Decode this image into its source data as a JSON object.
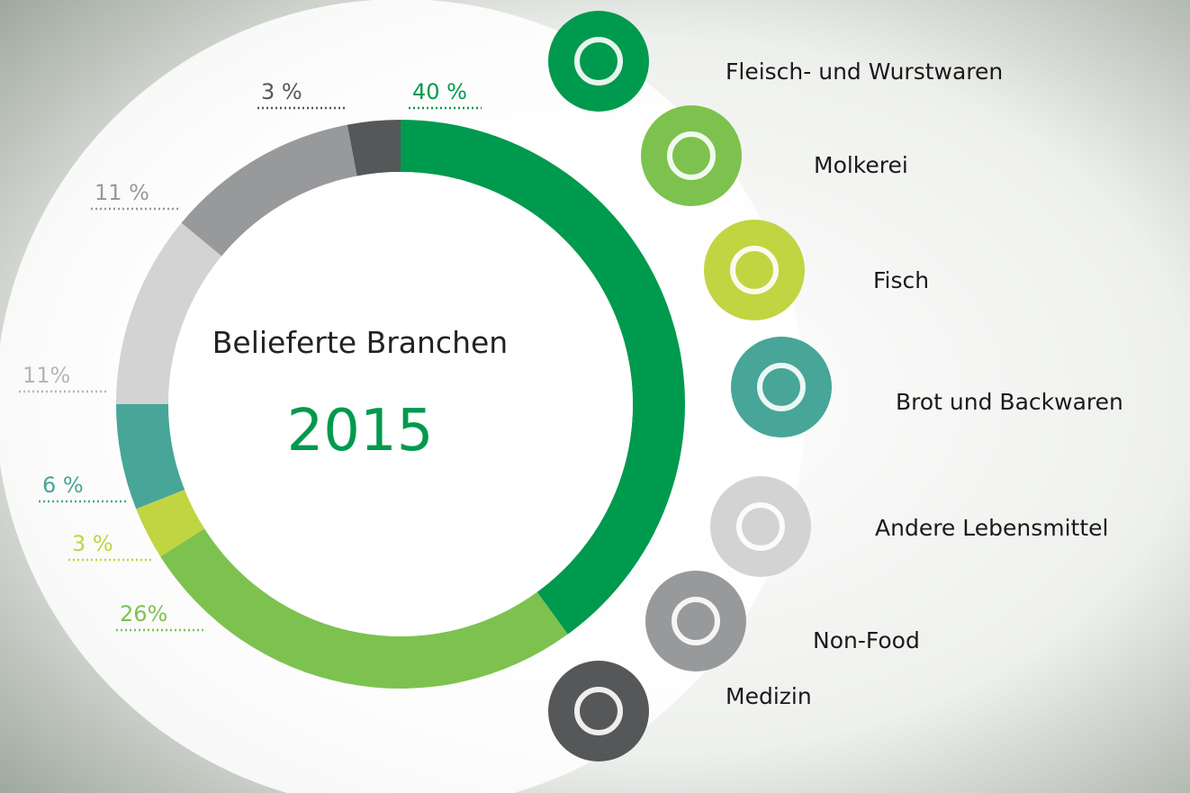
{
  "chart_data": {
    "type": "donut",
    "title": "Belieferte Branchen",
    "subtitle": "2015",
    "categories": [
      "Fleisch- und Wurstwaren",
      "Molkerei",
      "Fisch",
      "Brot und Backwaren",
      "Andere Lebensmittel",
      "Non-Food",
      "Medizin"
    ],
    "values": [
      40,
      26,
      3,
      6,
      11,
      11,
      3
    ],
    "value_labels": [
      "40 %",
      "26%",
      "3 %",
      "6 %",
      "11%",
      "11 %",
      "3 %"
    ],
    "colors": [
      "#009a4e",
      "#7dc24f",
      "#c0d541",
      "#47a697",
      "#d3d3d3",
      "#98999b",
      "#555759"
    ]
  }
}
